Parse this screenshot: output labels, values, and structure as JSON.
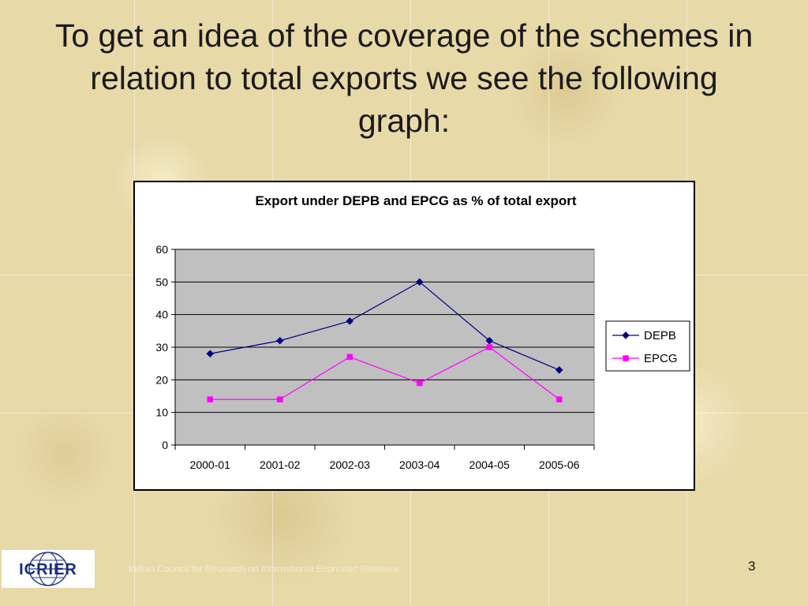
{
  "slide": {
    "title": "To get an idea of the coverage of the schemes in relation to total exports we see the following graph:",
    "footer_org": "Indian Council for Research on International Economic Relations",
    "page_number": "3",
    "logo_text": "ICRIER"
  },
  "chart_data": {
    "type": "line",
    "title": "Export under DEPB and EPCG as % of total export",
    "xlabel": "",
    "ylabel": "",
    "categories": [
      "2000-01",
      "2001-02",
      "2002-03",
      "2003-04",
      "2004-05",
      "2005-06"
    ],
    "ylim": [
      0,
      60
    ],
    "yticks": [
      0,
      10,
      20,
      30,
      40,
      50,
      60
    ],
    "grid": true,
    "legend_position": "right",
    "plot_background": "#c0c0c0",
    "series": [
      {
        "name": "DEPB",
        "values": [
          28,
          32,
          38,
          50,
          32,
          23
        ],
        "color": "#000080",
        "marker": "diamond"
      },
      {
        "name": "EPCG",
        "values": [
          14,
          14,
          27,
          19,
          30,
          14
        ],
        "color": "#ff00ff",
        "marker": "square"
      }
    ]
  }
}
